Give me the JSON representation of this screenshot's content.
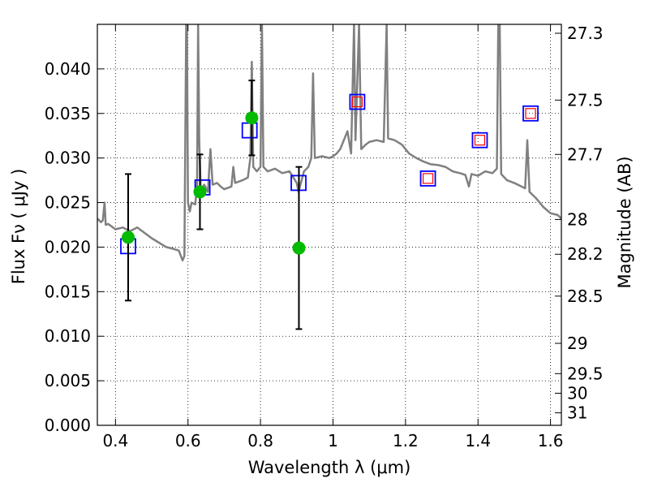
{
  "chart_data": {
    "type": "scatter",
    "title": "",
    "xlabel": "Wavelength  λ (μm)",
    "ylabel_left": "Flux  Fν  ( μJy )",
    "ylabel_right": "Magnitude (AB)",
    "xlim": [
      0.35,
      1.63
    ],
    "ylim": [
      0.0,
      0.045
    ],
    "grid": true,
    "x_ticks": [
      0.4,
      0.6,
      0.8,
      1.0,
      1.2,
      1.4,
      1.6
    ],
    "x_tick_labels": [
      "0.4",
      "0.6",
      "0.8",
      "1",
      "1.2",
      "1.4",
      "1.6"
    ],
    "y_ticks": [
      0.0,
      0.005,
      0.01,
      0.015,
      0.02,
      0.025,
      0.03,
      0.035,
      0.04
    ],
    "y_tick_labels": [
      "0.000",
      "0.005",
      "0.010",
      "0.015",
      "0.020",
      "0.025",
      "0.030",
      "0.035",
      "0.040"
    ],
    "right_ticks": [
      {
        "label": "27.3",
        "flux": 0.044
      },
      {
        "label": "27.5",
        "flux": 0.0365
      },
      {
        "label": "27.7",
        "flux": 0.0304
      },
      {
        "label": "28",
        "flux": 0.0231
      },
      {
        "label": "28.2",
        "flux": 0.0192
      },
      {
        "label": "28.5",
        "flux": 0.0145
      },
      {
        "label": "29",
        "flux": 0.0092
      },
      {
        "label": "29.5",
        "flux": 0.0058
      },
      {
        "label": "30",
        "flux": 0.0036
      },
      {
        "label": "31",
        "flux": 0.0014
      }
    ],
    "model_spectrum": {
      "color": "#808080",
      "points": [
        [
          0.35,
          0.0232
        ],
        [
          0.36,
          0.0228
        ],
        [
          0.365,
          0.023
        ],
        [
          0.37,
          0.025
        ],
        [
          0.373,
          0.0225
        ],
        [
          0.38,
          0.0226
        ],
        [
          0.4,
          0.022
        ],
        [
          0.42,
          0.0222
        ],
        [
          0.44,
          0.0218
        ],
        [
          0.46,
          0.0222
        ],
        [
          0.48,
          0.0216
        ],
        [
          0.5,
          0.021
        ],
        [
          0.52,
          0.0205
        ],
        [
          0.54,
          0.02
        ],
        [
          0.56,
          0.0198
        ],
        [
          0.575,
          0.0196
        ],
        [
          0.585,
          0.0185
        ],
        [
          0.59,
          0.019
        ],
        [
          0.595,
          0.045
        ],
        [
          0.597,
          0.045
        ],
        [
          0.6,
          0.025
        ],
        [
          0.605,
          0.024
        ],
        [
          0.61,
          0.025
        ],
        [
          0.62,
          0.0248
        ],
        [
          0.625,
          0.027
        ],
        [
          0.628,
          0.045
        ],
        [
          0.631,
          0.032
        ],
        [
          0.635,
          0.0265
        ],
        [
          0.645,
          0.027
        ],
        [
          0.655,
          0.0262
        ],
        [
          0.662,
          0.031
        ],
        [
          0.668,
          0.027
        ],
        [
          0.68,
          0.0272
        ],
        [
          0.69,
          0.0268
        ],
        [
          0.7,
          0.0265
        ],
        [
          0.72,
          0.0268
        ],
        [
          0.725,
          0.029
        ],
        [
          0.73,
          0.0272
        ],
        [
          0.75,
          0.0275
        ],
        [
          0.765,
          0.0278
        ],
        [
          0.772,
          0.03
        ],
        [
          0.776,
          0.0408
        ],
        [
          0.78,
          0.029
        ],
        [
          0.79,
          0.0285
        ],
        [
          0.8,
          0.029
        ],
        [
          0.804,
          0.045
        ],
        [
          0.808,
          0.029
        ],
        [
          0.82,
          0.0285
        ],
        [
          0.84,
          0.0288
        ],
        [
          0.86,
          0.0283
        ],
        [
          0.88,
          0.0285
        ],
        [
          0.9,
          0.0272
        ],
        [
          0.905,
          0.0262
        ],
        [
          0.91,
          0.027
        ],
        [
          0.92,
          0.0285
        ],
        [
          0.932,
          0.029
        ],
        [
          0.94,
          0.03
        ],
        [
          0.945,
          0.0395
        ],
        [
          0.95,
          0.03
        ],
        [
          0.97,
          0.0302
        ],
        [
          0.99,
          0.03
        ],
        [
          1.0,
          0.0302
        ],
        [
          1.01,
          0.0305
        ],
        [
          1.02,
          0.031
        ],
        [
          1.04,
          0.033
        ],
        [
          1.05,
          0.0305
        ],
        [
          1.058,
          0.045
        ],
        [
          1.062,
          0.032
        ],
        [
          1.072,
          0.045
        ],
        [
          1.078,
          0.031
        ],
        [
          1.09,
          0.0315
        ],
        [
          1.1,
          0.0318
        ],
        [
          1.12,
          0.032
        ],
        [
          1.14,
          0.0318
        ],
        [
          1.148,
          0.045
        ],
        [
          1.152,
          0.0322
        ],
        [
          1.17,
          0.032
        ],
        [
          1.19,
          0.0315
        ],
        [
          1.21,
          0.0305
        ],
        [
          1.23,
          0.03
        ],
        [
          1.25,
          0.0296
        ],
        [
          1.27,
          0.0293
        ],
        [
          1.29,
          0.0292
        ],
        [
          1.31,
          0.029
        ],
        [
          1.33,
          0.0285
        ],
        [
          1.35,
          0.0283
        ],
        [
          1.365,
          0.0281
        ],
        [
          1.375,
          0.0268
        ],
        [
          1.382,
          0.0282
        ],
        [
          1.4,
          0.028
        ],
        [
          1.42,
          0.0285
        ],
        [
          1.44,
          0.0283
        ],
        [
          1.452,
          0.0288
        ],
        [
          1.456,
          0.045
        ],
        [
          1.46,
          0.045
        ],
        [
          1.464,
          0.0282
        ],
        [
          1.48,
          0.0275
        ],
        [
          1.5,
          0.0272
        ],
        [
          1.52,
          0.0268
        ],
        [
          1.53,
          0.0266
        ],
        [
          1.536,
          0.032
        ],
        [
          1.542,
          0.0262
        ],
        [
          1.56,
          0.0255
        ],
        [
          1.58,
          0.0245
        ],
        [
          1.6,
          0.0238
        ],
        [
          1.62,
          0.0236
        ],
        [
          1.63,
          0.0232
        ]
      ]
    },
    "observed_points": {
      "color": "#00bb00",
      "points": [
        {
          "x": 0.435,
          "y": 0.0211,
          "yerr_low": 0.014,
          "yerr_high": 0.0282
        },
        {
          "x": 0.633,
          "y": 0.0262,
          "yerr_low": 0.022,
          "yerr_high": 0.0304
        },
        {
          "x": 0.776,
          "y": 0.0345,
          "yerr_low": 0.0303,
          "yerr_high": 0.0387
        },
        {
          "x": 0.906,
          "y": 0.0199,
          "yerr_low": 0.0108,
          "yerr_high": 0.029
        }
      ]
    },
    "model_photometry_blue": {
      "color": "#0000ff",
      "points": [
        {
          "x": 0.435,
          "y": 0.0201
        },
        {
          "x": 0.64,
          "y": 0.0267
        },
        {
          "x": 0.77,
          "y": 0.0331
        },
        {
          "x": 0.905,
          "y": 0.0272
        },
        {
          "x": 1.067,
          "y": 0.0363
        },
        {
          "x": 1.262,
          "y": 0.0277
        },
        {
          "x": 1.405,
          "y": 0.032
        },
        {
          "x": 1.545,
          "y": 0.035
        }
      ]
    },
    "model_photometry_red": {
      "color": "#ff0000",
      "points": [
        {
          "x": 1.067,
          "y": 0.0363
        },
        {
          "x": 1.262,
          "y": 0.0277
        },
        {
          "x": 1.405,
          "y": 0.032
        },
        {
          "x": 1.545,
          "y": 0.035
        }
      ]
    }
  }
}
